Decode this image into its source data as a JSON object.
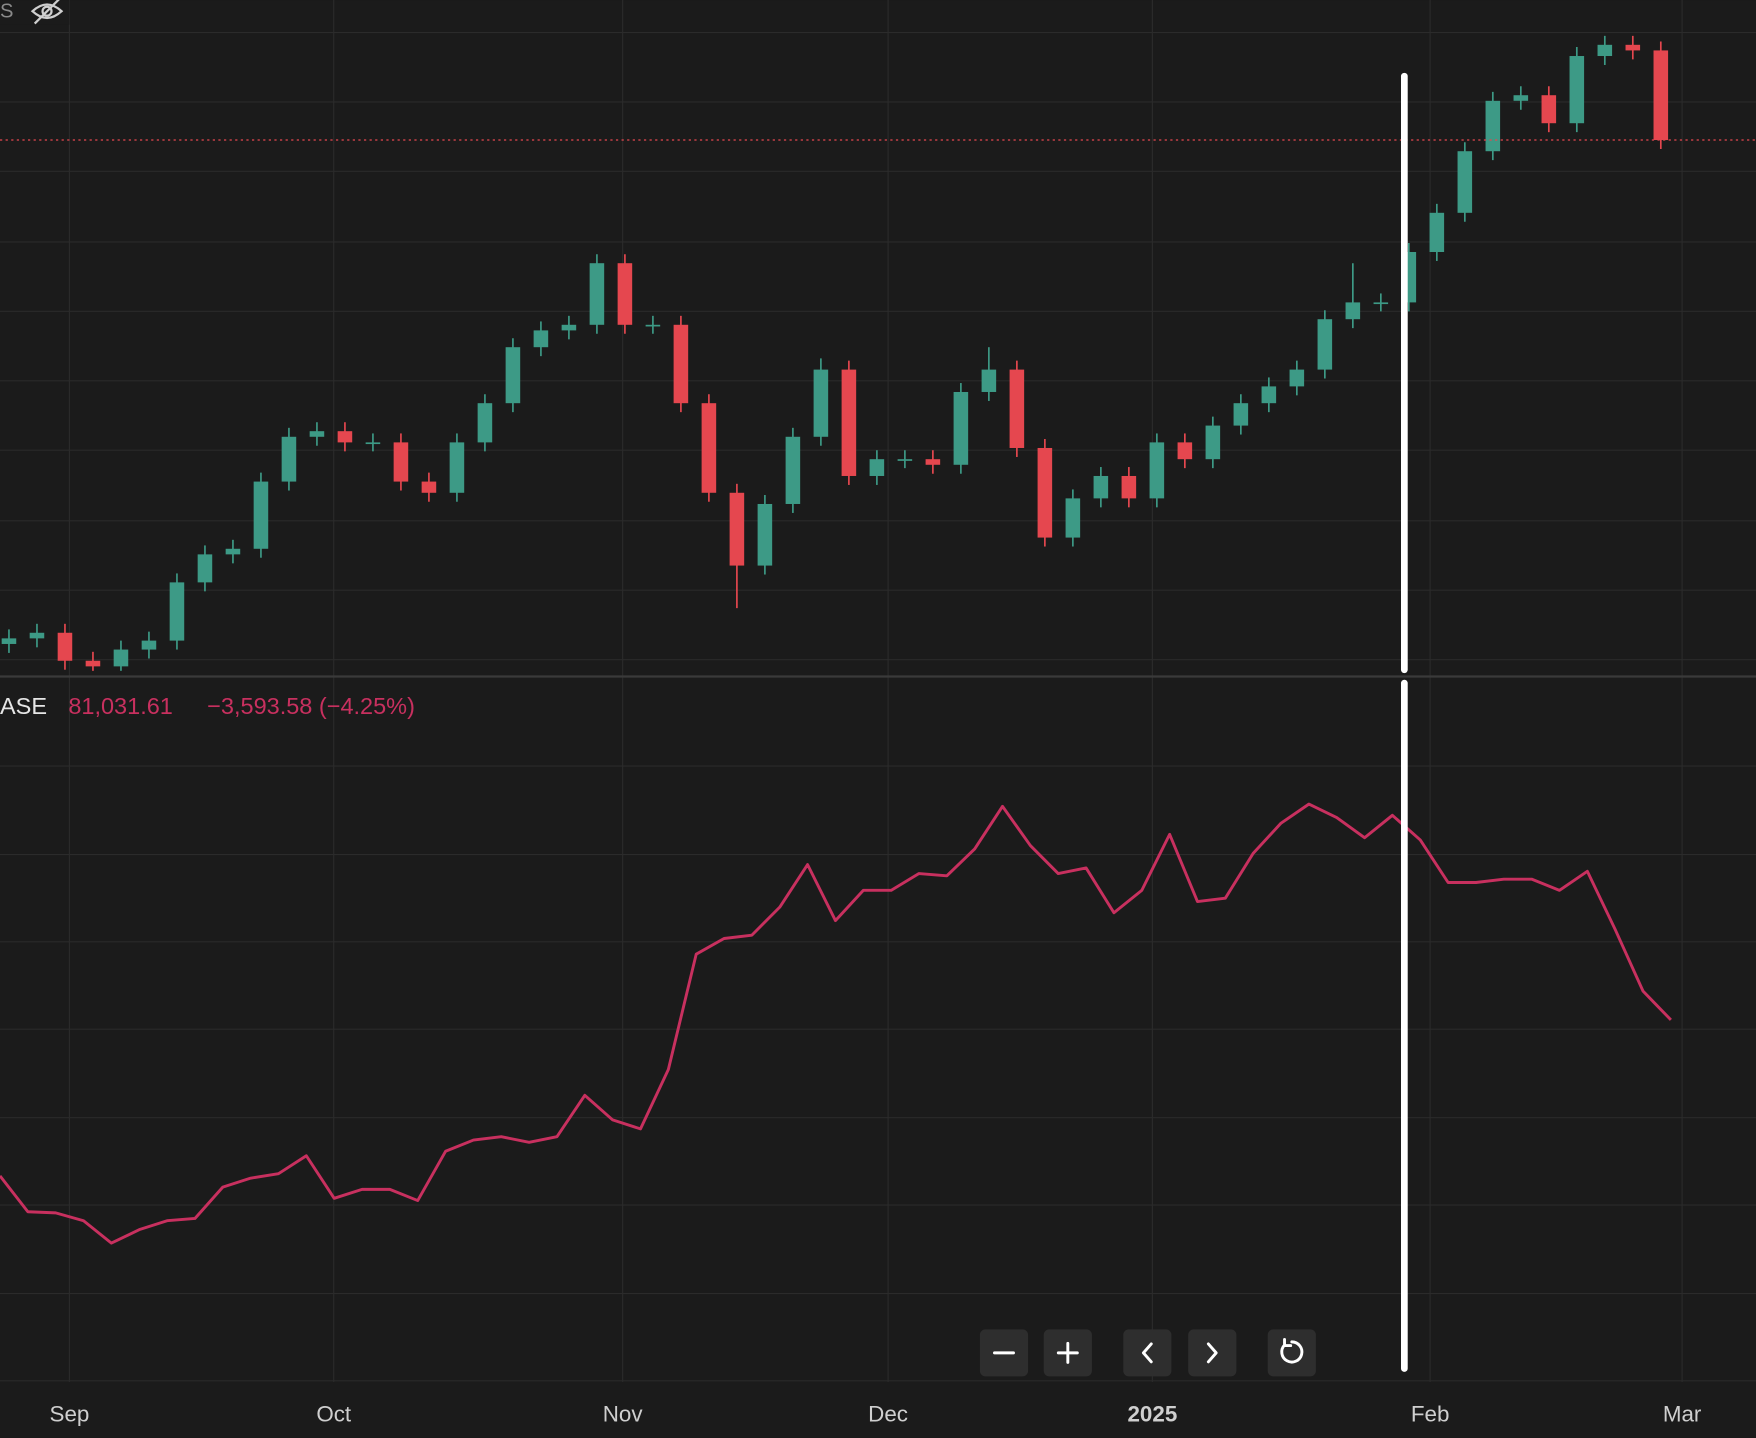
{
  "header": {
    "symbol_fragment": "S"
  },
  "chart_data": [
    {
      "type": "candlestick",
      "up_color": "#3d9a86",
      "down_color": "#e5474f",
      "ylim": [
        55000,
        115000
      ],
      "open": [
        57500,
        58000,
        58500,
        56000,
        55500,
        57000,
        57800,
        63000,
        65500,
        66000,
        72000,
        76000,
        76500,
        75500,
        75500,
        72000,
        71000,
        75500,
        79000,
        84000,
        85500,
        86000,
        91500,
        86000,
        86000,
        79000,
        71000,
        64500,
        70000,
        76000,
        82000,
        72500,
        74000,
        74000,
        73500,
        80000,
        82000,
        75000,
        67000,
        70500,
        72500,
        70500,
        75500,
        74000,
        77000,
        79000,
        80500,
        82000,
        86500,
        88000,
        88000,
        92500,
        96000,
        101500,
        106000,
        106500,
        104000,
        110000,
        111000,
        110500
      ],
      "high": [
        58800,
        59300,
        59300,
        56800,
        57800,
        58600,
        63800,
        66300,
        66800,
        72800,
        76800,
        77300,
        77300,
        76300,
        76300,
        72800,
        76300,
        79800,
        84800,
        86300,
        86800,
        92300,
        92300,
        86800,
        86800,
        79800,
        71800,
        70800,
        76800,
        83000,
        82800,
        74800,
        74800,
        74800,
        80800,
        84000,
        82800,
        75800,
        71300,
        73300,
        73300,
        76300,
        76300,
        77800,
        79800,
        81300,
        82800,
        87300,
        91500,
        88800,
        93300,
        96800,
        102300,
        106800,
        107300,
        107300,
        110800,
        111800,
        111800,
        111300
      ],
      "low": [
        56700,
        57200,
        55200,
        55100,
        55100,
        56200,
        57000,
        62200,
        64700,
        65200,
        71200,
        75200,
        74700,
        74700,
        71200,
        70200,
        70200,
        74700,
        78200,
        83200,
        84700,
        85200,
        85200,
        85200,
        78200,
        70200,
        60700,
        63700,
        69200,
        75200,
        71700,
        71700,
        73200,
        72700,
        72700,
        79200,
        74200,
        66200,
        66200,
        69700,
        69700,
        69700,
        73200,
        73200,
        76200,
        78200,
        79700,
        81200,
        85700,
        87200,
        87200,
        91700,
        95200,
        100700,
        105200,
        103200,
        103200,
        109200,
        109700,
        101700
      ],
      "close": [
        58000,
        58500,
        56000,
        55500,
        57000,
        57800,
        63000,
        65500,
        66000,
        72000,
        76000,
        76500,
        75500,
        75500,
        72000,
        71000,
        75500,
        79000,
        84000,
        85500,
        86000,
        91500,
        86000,
        86000,
        79000,
        71000,
        64500,
        70000,
        76000,
        82000,
        72500,
        74000,
        74000,
        73500,
        80000,
        82000,
        75000,
        67000,
        70500,
        72500,
        70500,
        75500,
        74000,
        77000,
        79000,
        80500,
        82000,
        86500,
        88000,
        88000,
        92500,
        96000,
        101500,
        106000,
        106500,
        104000,
        110000,
        111000,
        110500,
        102500
      ],
      "last_price_line_color": "#e5474f"
    },
    {
      "type": "line",
      "ylim": [
        48700,
        111500
      ],
      "series": [
        {
          "name": "ASE",
          "color": "#c8305f",
          "values": [
            67100,
            63900,
            63800,
            63100,
            61100,
            62300,
            63100,
            63300,
            66100,
            66900,
            67300,
            68900,
            65100,
            65900,
            65900,
            64900,
            69300,
            70300,
            70600,
            70100,
            70600,
            74300,
            72100,
            71300,
            76600,
            86900,
            88300,
            88600,
            91100,
            94900,
            89900,
            92600,
            92600,
            94100,
            93900,
            96300,
            100100,
            96600,
            94100,
            94600,
            90600,
            92600,
            97600,
            91600,
            91900,
            95900,
            98600,
            100300,
            99100,
            97300,
            99300,
            97100,
            93300,
            93300,
            93600,
            93600,
            92600,
            94300,
            89100,
            83600,
            81031.61
          ]
        }
      ],
      "legend": {
        "last": "81,031.61",
        "change": "−3,593.58 (−4.25%)"
      }
    }
  ],
  "time_axis": {
    "labels": [
      "Sep",
      "Oct",
      "Nov",
      "Dec",
      "2025",
      "Feb",
      "Mar"
    ]
  }
}
